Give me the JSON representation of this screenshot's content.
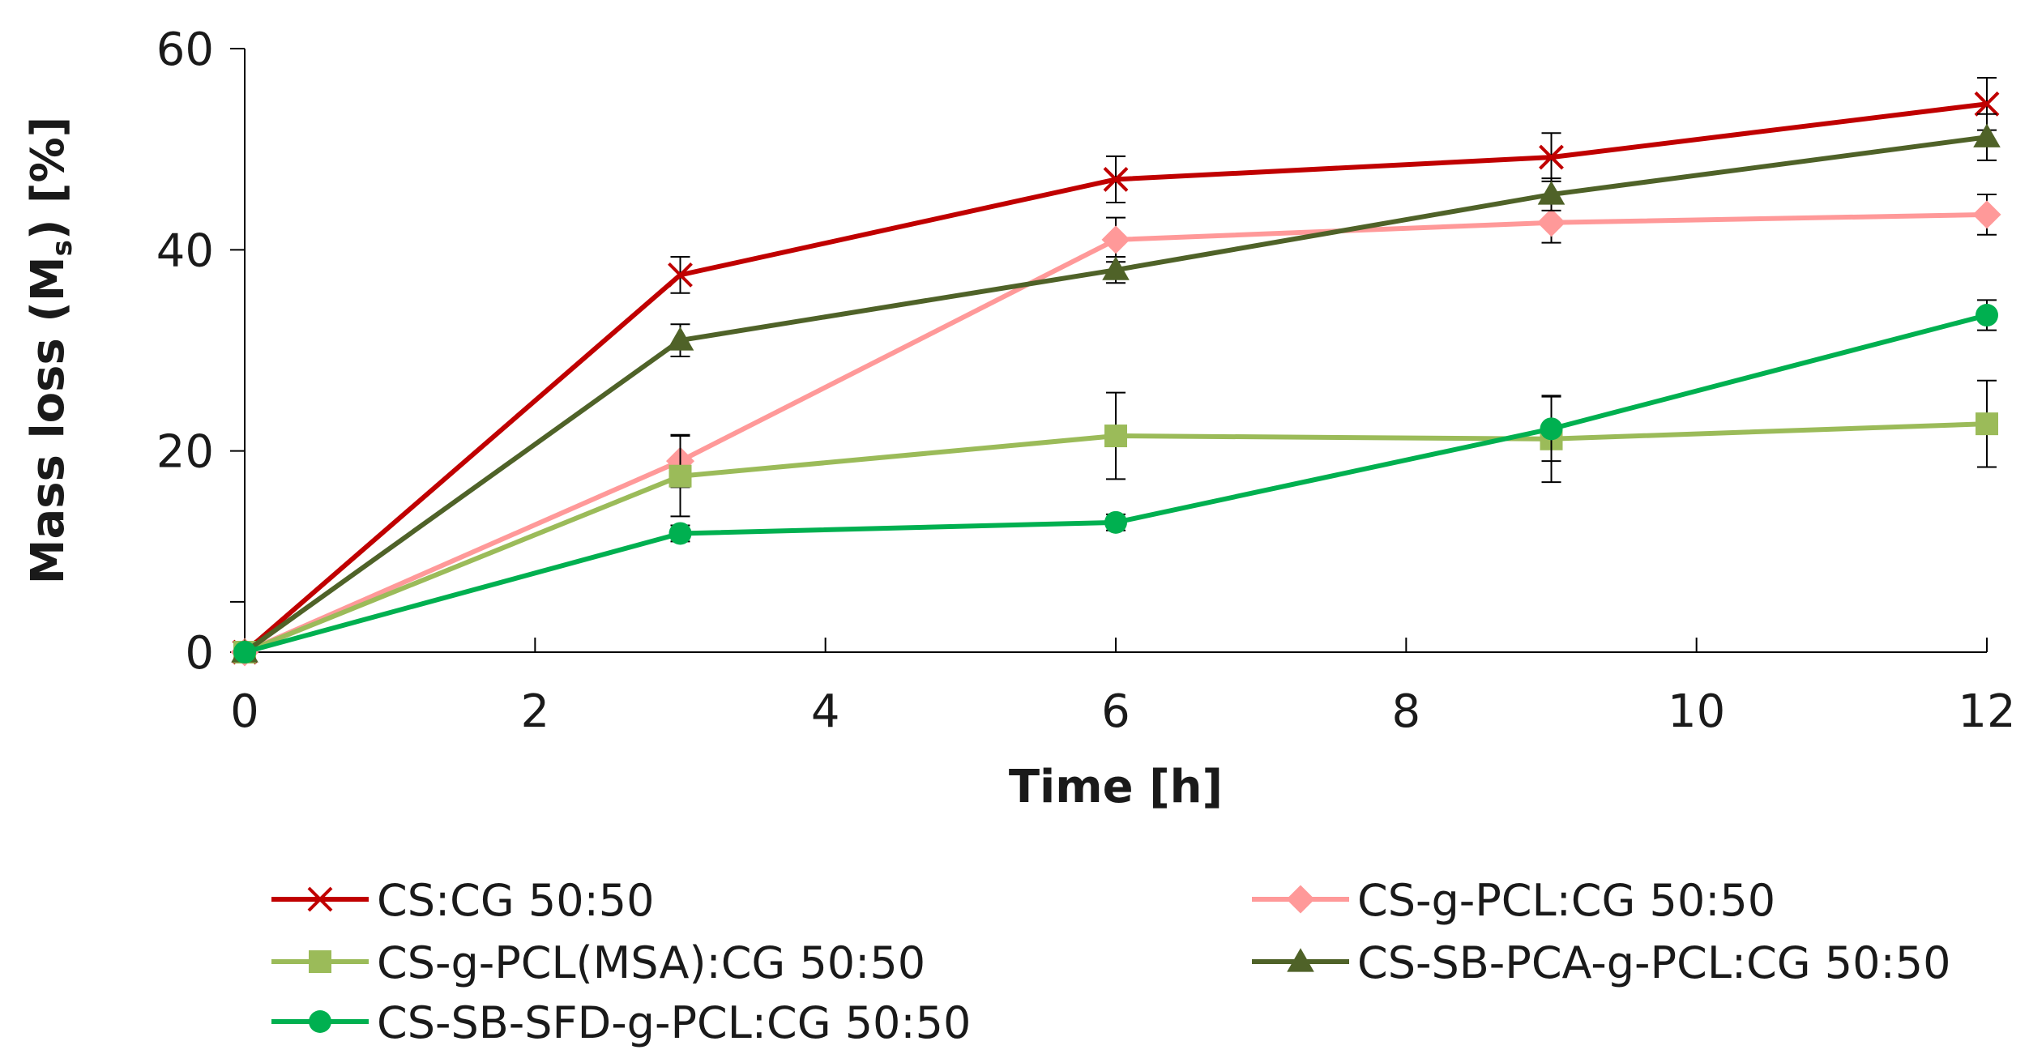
{
  "chart_data": {
    "type": "line",
    "title": "",
    "xlabel": "Time [h]",
    "ylabel_parts": [
      "Mass loss (M",
      "s",
      ") [%]"
    ],
    "xlim": [
      0,
      12
    ],
    "ylim": [
      0,
      60
    ],
    "xticks": [
      0,
      2,
      4,
      6,
      8,
      10,
      12
    ],
    "yticks": [
      0,
      20,
      40,
      60
    ],
    "grid": false,
    "legend_position": "bottom",
    "x": [
      0,
      3,
      6,
      9,
      12
    ],
    "series": [
      {
        "name": "CS:CG 50:50",
        "color": "#c00000",
        "marker": "x",
        "values": [
          0,
          37.5,
          47,
          49.2,
          54.5
        ],
        "errors": [
          0,
          1.8,
          2.3,
          2.4,
          2.6
        ]
      },
      {
        "name": "CS-g-PCL:CG 50:50",
        "color": "#ff9999",
        "marker": "diamond",
        "values": [
          0,
          19,
          41,
          42.7,
          43.5
        ],
        "errors": [
          0,
          2.6,
          2.2,
          2.0,
          2.0
        ]
      },
      {
        "name": "CS-g-PCL(MSA):CG 50:50",
        "color": "#9bbb59",
        "marker": "square",
        "values": [
          0,
          17.5,
          21.5,
          21.2,
          22.7
        ],
        "errors": [
          0,
          4.0,
          4.3,
          4.3,
          4.3
        ]
      },
      {
        "name": "CS-SB-PCA-g-PCL:CG 50:50",
        "color": "#4f6228",
        "marker": "triangle",
        "values": [
          0,
          31,
          38,
          45.5,
          51.2
        ],
        "errors": [
          0,
          1.6,
          1.3,
          1.6,
          2.3
        ]
      },
      {
        "name": "CS-SB-SFD-g-PCL:CG 50:50",
        "color": "#00b050",
        "marker": "circle",
        "values": [
          0,
          11.8,
          12.9,
          22.2,
          33.5
        ],
        "errors": [
          0,
          0.8,
          0.8,
          3.2,
          1.5
        ]
      }
    ]
  }
}
